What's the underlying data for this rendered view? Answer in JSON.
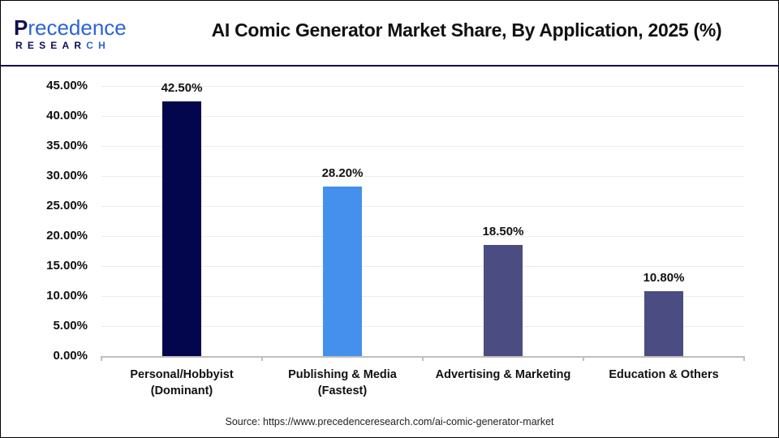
{
  "logo": {
    "line1_initial": "P",
    "line1_rest": "recedence",
    "line2_main": "RESEAR",
    "line2_accent": "CH"
  },
  "header": {
    "title": "AI Comic Generator Market Share, By Application, 2025 (%)"
  },
  "colors": {
    "header_separator": "#0b0a3f",
    "bar_personal": "#03064d",
    "bar_publishing": "#4490ec",
    "bar_advertising": "#4a4c82",
    "bar_education": "#4a4c82",
    "gridline": "#ececec",
    "axis": "#bfbfbf"
  },
  "footer": {
    "source": "Source: https://www.precedenceresearch.com/ai-comic-generator-market"
  },
  "chart_data": {
    "type": "bar",
    "title": "AI Comic Generator Market Share, By Application, 2025 (%)",
    "xlabel": "",
    "ylabel": "",
    "categories": [
      "Personal/Hobbyist (Dominant)",
      "Publishing & Media (Fastest)",
      "Advertising & Marketing",
      "Education & Others"
    ],
    "category_lines": [
      [
        "Personal/Hobbyist",
        "(Dominant)"
      ],
      [
        "Publishing & Media",
        "(Fastest)"
      ],
      [
        "Advertising & Marketing",
        ""
      ],
      [
        "Education & Others",
        ""
      ]
    ],
    "values": [
      42.5,
      28.2,
      18.5,
      10.8
    ],
    "value_labels": [
      "42.50%",
      "28.20%",
      "18.50%",
      "10.80%"
    ],
    "bar_colors": [
      "#03064d",
      "#4490ec",
      "#4a4c82",
      "#4a4c82"
    ],
    "ylim": [
      0,
      45
    ],
    "yticks": [
      0,
      5,
      10,
      15,
      20,
      25,
      30,
      35,
      40,
      45
    ],
    "ytick_labels": [
      "0.00%",
      "5.00%",
      "10.00%",
      "15.00%",
      "20.00%",
      "25.00%",
      "30.00%",
      "35.00%",
      "40.00%",
      "45.00%"
    ],
    "grid": true,
    "legend": null
  }
}
